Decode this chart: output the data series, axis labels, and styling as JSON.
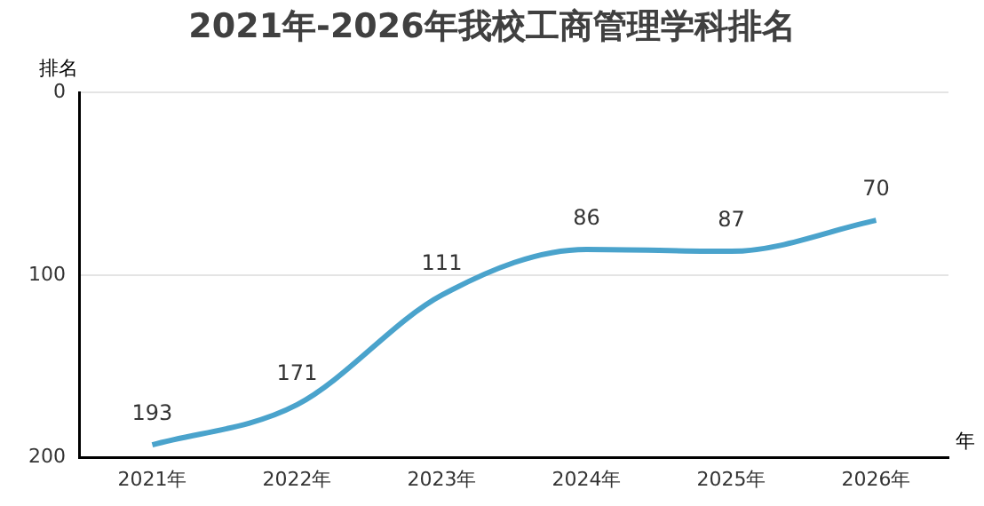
{
  "chart_data": {
    "type": "line",
    "title": "2021年-2026年我校工商管理学科排名",
    "ylabel": "排名",
    "xlabel": "年",
    "categories": [
      "2021年",
      "2022年",
      "2023年",
      "2024年",
      "2025年",
      "2026年"
    ],
    "series": [
      {
        "color": "#4aa3cc",
        "values": [
          193,
          171,
          111,
          86,
          87,
          70
        ]
      }
    ],
    "ylim": [
      200,
      0
    ],
    "yticks": [
      0,
      100,
      200
    ],
    "grid": "y",
    "legend": false,
    "data_labels": true,
    "marker": "none",
    "line_style": "solid"
  }
}
